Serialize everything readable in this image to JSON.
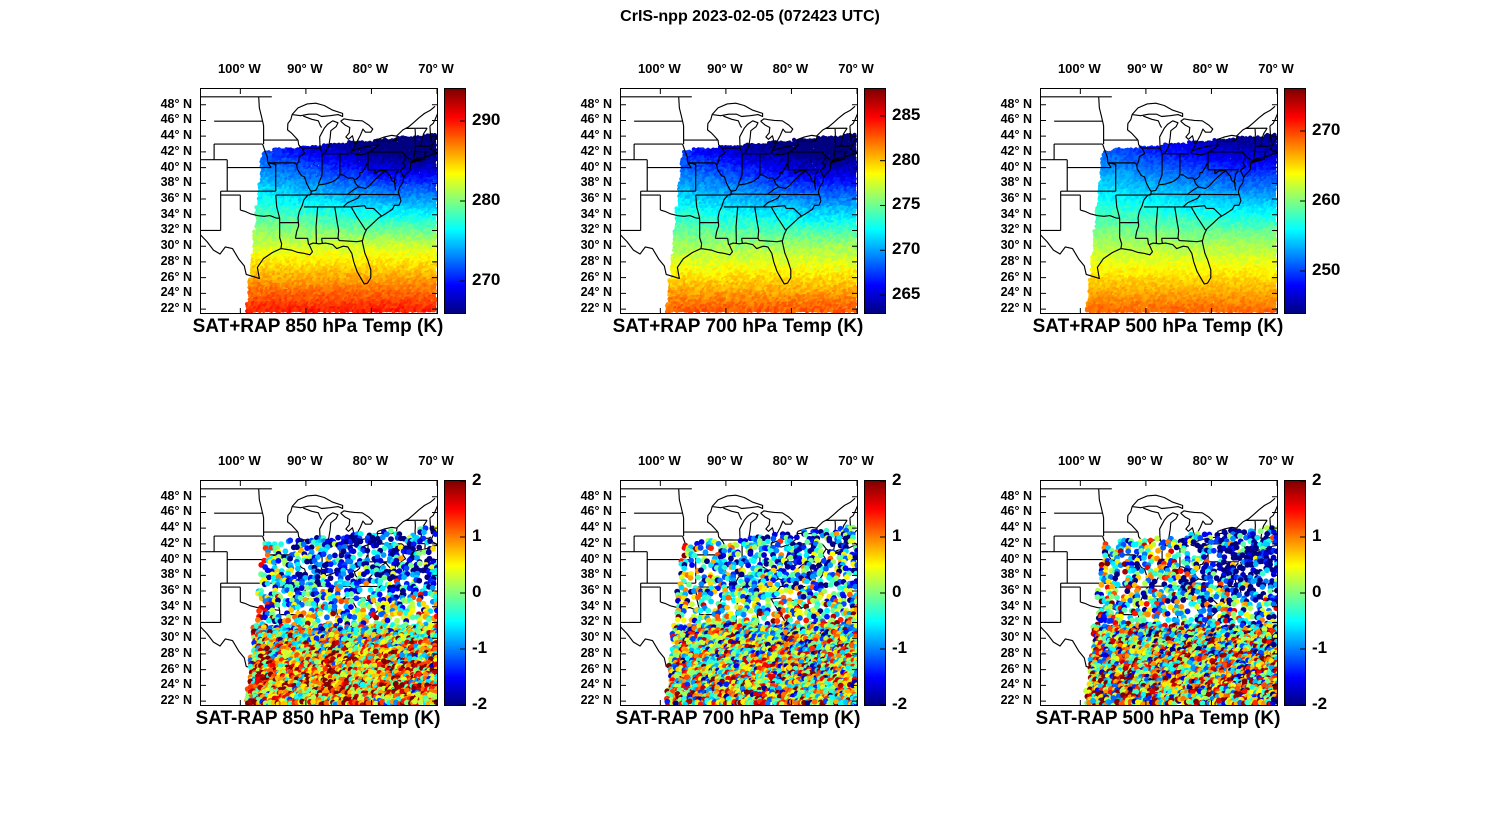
{
  "title": "CrIS-npp 2023-02-05 (072423 UTC)",
  "axes": {
    "x_tick_labels": [
      "100° W",
      "90° W",
      "80° W",
      "70° W"
    ],
    "x_tick_lons": [
      -100,
      -90,
      -80,
      -70
    ],
    "y_tick_labels": [
      "48° N",
      "46° N",
      "44° N",
      "42° N",
      "40° N",
      "38° N",
      "36° N",
      "34° N",
      "32° N",
      "30° N",
      "28° N",
      "26° N",
      "24° N",
      "22° N"
    ],
    "y_tick_lats": [
      48,
      46,
      44,
      42,
      40,
      38,
      36,
      34,
      32,
      30,
      28,
      26,
      24,
      22
    ],
    "lon_range": [
      -106,
      -70
    ],
    "lat_range": [
      21.5,
      50
    ]
  },
  "colors": {
    "line": "#000000",
    "background": "#ffffff",
    "colormap": "jet"
  },
  "chart_data": [
    {
      "title": "SAT+RAP 850 hPa Temp (K)",
      "type": "scatter",
      "kind": "analysis",
      "colorbar": {
        "min": 266,
        "max": 294,
        "ticks": [
          290,
          280,
          270
        ]
      },
      "field": {
        "south_K": 289.5,
        "lat_slope_K_per_deg": 0.92,
        "northeast_cooling_K": 6
      }
    },
    {
      "title": "SAT+RAP 700 hPa Temp (K)",
      "type": "scatter",
      "kind": "analysis",
      "colorbar": {
        "min": 263,
        "max": 288,
        "ticks": [
          285,
          280,
          275,
          270,
          265
        ]
      },
      "field": {
        "south_K": 282.5,
        "lat_slope_K_per_deg": 0.78,
        "northeast_cooling_K": 5
      }
    },
    {
      "title": "SAT+RAP 500 hPa Temp (K)",
      "type": "scatter",
      "kind": "analysis",
      "colorbar": {
        "min": 244,
        "max": 276,
        "ticks": [
          270,
          260,
          250
        ]
      },
      "field": {
        "south_K": 268.5,
        "lat_slope_K_per_deg": 0.88,
        "northeast_cooling_K": 5
      }
    },
    {
      "title": "SAT-RAP 850 hPa Temp (K)",
      "type": "scatter",
      "kind": "difference",
      "colorbar": {
        "min": -2,
        "max": 2,
        "ticks": [
          2,
          1,
          0,
          -1,
          -2
        ]
      },
      "diff": {
        "seed": 11,
        "south_bias": 0.85,
        "north_bias": -1.35,
        "noise": 0.95,
        "west_hot": 2.0
      }
    },
    {
      "title": "SAT-RAP 700 hPa Temp (K)",
      "type": "scatter",
      "kind": "difference",
      "colorbar": {
        "min": -2,
        "max": 2,
        "ticks": [
          2,
          1,
          0,
          -1,
          -2
        ]
      },
      "diff": {
        "seed": 22,
        "south_bias": 0.35,
        "north_bias": -1.0,
        "noise": 1.05,
        "top_hot": 1.0
      }
    },
    {
      "title": "SAT-RAP 500 hPa Temp (K)",
      "type": "scatter",
      "kind": "difference",
      "colorbar": {
        "min": -2,
        "max": 2,
        "ticks": [
          2,
          1,
          0,
          -1,
          -2
        ]
      },
      "diff": {
        "seed": 33,
        "south_bias": 0.5,
        "north_bias": -1.0,
        "noise": 1.25,
        "center_hot": 1.4,
        "east_cool": -0.9
      }
    }
  ]
}
